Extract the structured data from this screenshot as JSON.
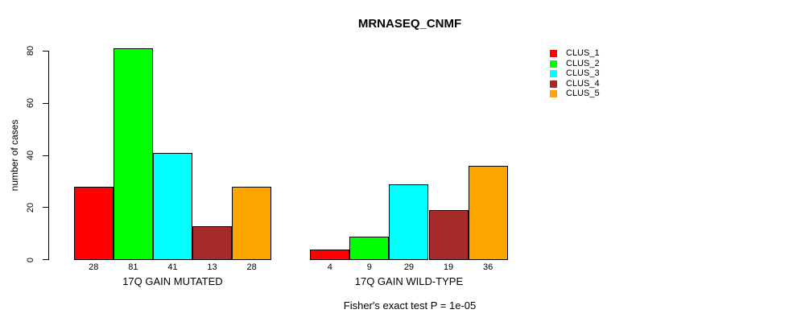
{
  "chart_data": {
    "type": "bar",
    "title": "MRNASEQ_CNMF",
    "ylabel": "number of cases",
    "ylim": [
      0,
      80
    ],
    "yticks": [
      0,
      20,
      40,
      60,
      80
    ],
    "grid": false,
    "legend_position": "right",
    "bar_value_labels": true,
    "categories": [
      "17Q GAIN MUTATED",
      "17Q GAIN WILD-TYPE"
    ],
    "series": [
      {
        "name": "CLUS_1",
        "color": "#FF0000",
        "values": [
          28,
          4
        ]
      },
      {
        "name": "CLUS_2",
        "color": "#00FF00",
        "values": [
          81,
          9
        ]
      },
      {
        "name": "CLUS_3",
        "color": "#00FFFF",
        "values": [
          41,
          29
        ]
      },
      {
        "name": "CLUS_4",
        "color": "#A52A2A",
        "values": [
          13,
          19
        ]
      },
      {
        "name": "CLUS_5",
        "color": "#FFA500",
        "values": [
          28,
          36
        ]
      }
    ],
    "footnote": "Fisher's exact test P = 1e-05"
  }
}
